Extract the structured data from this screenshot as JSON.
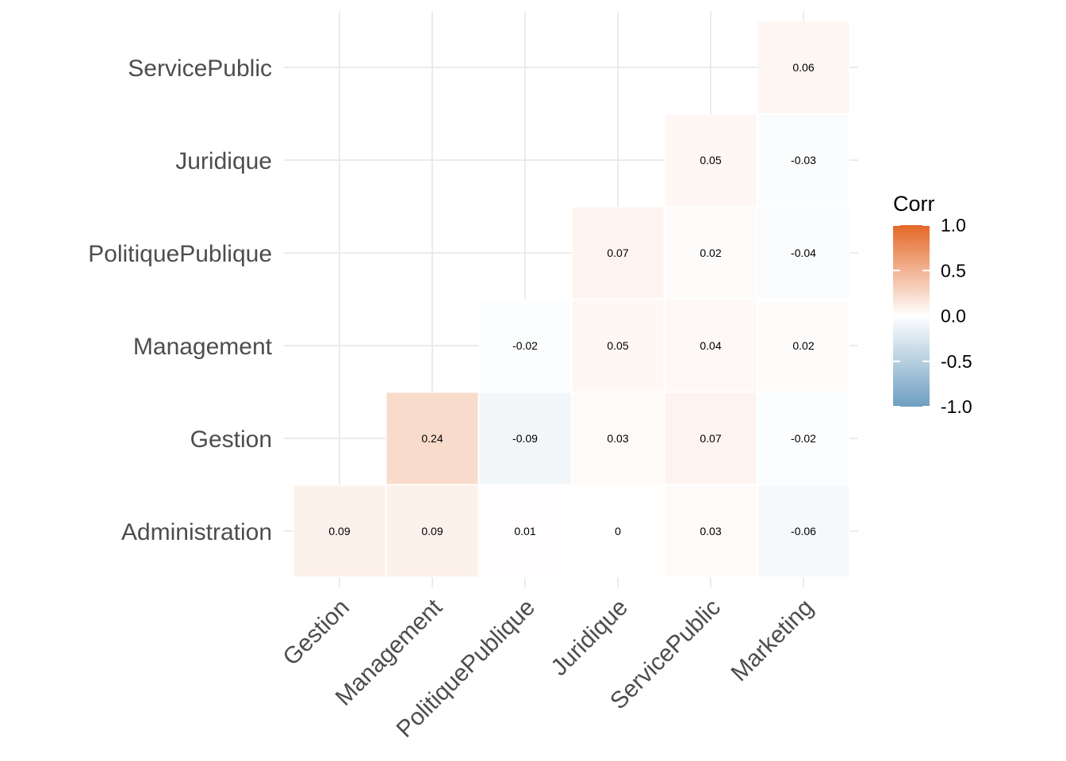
{
  "chart_data": {
    "type": "heatmap",
    "title": "",
    "xlabel": "",
    "ylabel": "",
    "x_categories": [
      "Gestion",
      "Management",
      "PolitiquePublique",
      "Juridique",
      "ServicePublic",
      "Marketing"
    ],
    "y_categories": [
      "Administration",
      "Gestion",
      "Management",
      "PolitiquePublique",
      "Juridique",
      "ServicePublic"
    ],
    "cells": [
      {
        "x": "Gestion",
        "y": "Administration",
        "value": 0.09,
        "label": "0.09"
      },
      {
        "x": "Management",
        "y": "Administration",
        "value": 0.09,
        "label": "0.09"
      },
      {
        "x": "PolitiquePublique",
        "y": "Administration",
        "value": 0.01,
        "label": "0.01"
      },
      {
        "x": "Juridique",
        "y": "Administration",
        "value": 0,
        "label": "0"
      },
      {
        "x": "ServicePublic",
        "y": "Administration",
        "value": 0.03,
        "label": "0.03"
      },
      {
        "x": "Marketing",
        "y": "Administration",
        "value": -0.06,
        "label": "-0.06"
      },
      {
        "x": "Management",
        "y": "Gestion",
        "value": 0.24,
        "label": "0.24"
      },
      {
        "x": "PolitiquePublique",
        "y": "Gestion",
        "value": -0.09,
        "label": "-0.09"
      },
      {
        "x": "Juridique",
        "y": "Gestion",
        "value": 0.03,
        "label": "0.03"
      },
      {
        "x": "ServicePublic",
        "y": "Gestion",
        "value": 0.07,
        "label": "0.07"
      },
      {
        "x": "Marketing",
        "y": "Gestion",
        "value": -0.02,
        "label": "-0.02"
      },
      {
        "x": "PolitiquePublique",
        "y": "Management",
        "value": -0.02,
        "label": "-0.02"
      },
      {
        "x": "Juridique",
        "y": "Management",
        "value": 0.05,
        "label": "0.05"
      },
      {
        "x": "ServicePublic",
        "y": "Management",
        "value": 0.04,
        "label": "0.04"
      },
      {
        "x": "Marketing",
        "y": "Management",
        "value": 0.02,
        "label": "0.02"
      },
      {
        "x": "Juridique",
        "y": "PolitiquePublique",
        "value": 0.07,
        "label": "0.07"
      },
      {
        "x": "ServicePublic",
        "y": "PolitiquePublique",
        "value": 0.02,
        "label": "0.02"
      },
      {
        "x": "Marketing",
        "y": "PolitiquePublique",
        "value": -0.04,
        "label": "-0.04"
      },
      {
        "x": "ServicePublic",
        "y": "Juridique",
        "value": 0.05,
        "label": "0.05"
      },
      {
        "x": "Marketing",
        "y": "Juridique",
        "value": -0.03,
        "label": "-0.03"
      },
      {
        "x": "Marketing",
        "y": "ServicePublic",
        "value": 0.06,
        "label": "0.06"
      }
    ],
    "value_range": [
      -1,
      1
    ],
    "color_scale": {
      "low": "#6d9ec1",
      "mid": "#ffffff",
      "high": "#e46726"
    },
    "legend": {
      "title": "Corr",
      "placement": "right",
      "ticks": [
        1.0,
        0.5,
        0.0,
        -0.5,
        -1.0
      ],
      "tick_labels": [
        "1.0",
        "0.5",
        "0.0",
        "-0.5",
        "-1.0"
      ]
    },
    "grid": true
  }
}
